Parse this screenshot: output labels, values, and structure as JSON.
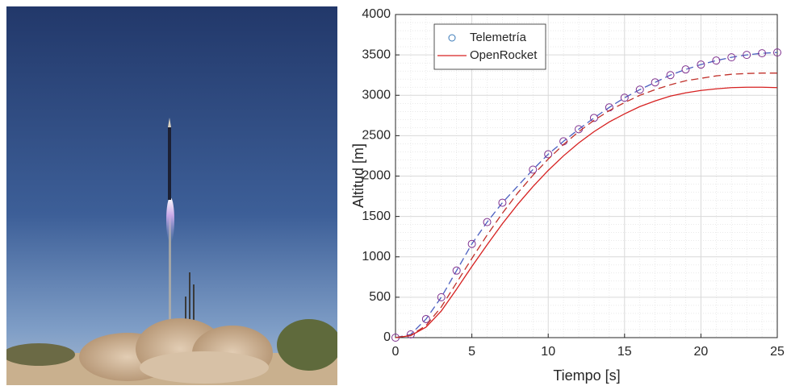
{
  "chart_data": {
    "type": "line",
    "xlabel": "Tiempo [s]",
    "ylabel": "Altitud [m]",
    "xlim": [
      0,
      25
    ],
    "ylim": [
      0,
      4000
    ],
    "xticks": [
      0,
      5,
      10,
      15,
      20,
      25
    ],
    "yticks": [
      0,
      500,
      1000,
      1500,
      2000,
      2500,
      3000,
      3500,
      4000
    ],
    "grid": true,
    "minor_grid": true,
    "legend": "upper left",
    "series": [
      {
        "name": "Telemetría",
        "color": "#7e2f8e",
        "marker": "circle",
        "line_style": "dashed",
        "line_color": "#4b5fc0",
        "x": [
          0,
          1,
          2,
          3,
          4,
          5,
          6,
          7,
          9,
          10,
          11,
          12,
          13,
          14,
          15,
          16,
          17,
          18,
          19,
          20,
          21,
          22,
          23,
          24,
          25
        ],
        "values": [
          0,
          40,
          230,
          500,
          830,
          1160,
          1430,
          1670,
          2080,
          2270,
          2430,
          2580,
          2720,
          2850,
          2970,
          3070,
          3160,
          3250,
          3320,
          3380,
          3430,
          3470,
          3500,
          3520,
          3530
        ]
      },
      {
        "name": "OpenRocket",
        "color": "#d62020",
        "line_style": "solid",
        "x": [
          0,
          1,
          2,
          3,
          4,
          5,
          6,
          7,
          8,
          9,
          10,
          11,
          12,
          13,
          14,
          15,
          16,
          17,
          18,
          19,
          20,
          21,
          22,
          23,
          24,
          25
        ],
        "values": [
          0,
          25,
          130,
          330,
          600,
          880,
          1150,
          1410,
          1650,
          1870,
          2070,
          2250,
          2410,
          2550,
          2670,
          2770,
          2860,
          2930,
          2990,
          3030,
          3060,
          3080,
          3095,
          3100,
          3100,
          3095
        ]
      },
      {
        "color": "#c0302a",
        "line_style": "dashed",
        "x": [
          0,
          1,
          2,
          3,
          4,
          5,
          6,
          7,
          8,
          9,
          10,
          11,
          12,
          13,
          14,
          15,
          16,
          17,
          18,
          19,
          20,
          21,
          22,
          23,
          24,
          25
        ],
        "values": [
          0,
          30,
          150,
          380,
          680,
          980,
          1270,
          1540,
          1790,
          2010,
          2210,
          2390,
          2550,
          2690,
          2810,
          2910,
          3000,
          3070,
          3130,
          3180,
          3210,
          3240,
          3260,
          3270,
          3275,
          3275
        ]
      }
    ]
  }
}
